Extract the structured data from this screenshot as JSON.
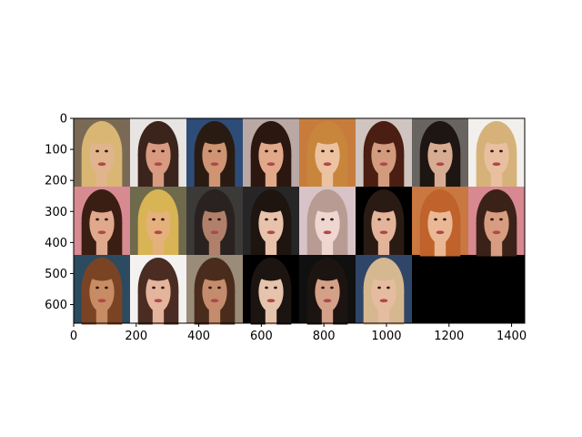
{
  "figure": {
    "background": "#ffffff",
    "image": {
      "description_rows": 3,
      "description_cols": 8,
      "fill_color": "#000000",
      "tiles": [
        {
          "bg": "#7a6a55",
          "skin": "#e0b48c",
          "hair": "#d9b673"
        },
        {
          "bg": "#e8e4e2",
          "skin": "#d89a80",
          "hair": "#3a241c"
        },
        {
          "bg": "#2e4c78",
          "skin": "#cf9472",
          "hair": "#2a1b12"
        },
        {
          "bg": "#b9a8a4",
          "skin": "#e2a88a",
          "hair": "#2c1710"
        },
        {
          "bg": "#c87c3c",
          "skin": "#ecc2a0",
          "hair": "#c8863c"
        },
        {
          "bg": "#cfc4bf",
          "skin": "#d39b7e",
          "hair": "#4a1e12"
        },
        {
          "bg": "#6a6460",
          "skin": "#d8ac92",
          "hair": "#1e1612"
        },
        {
          "bg": "#f2f0ec",
          "skin": "#e8c0a0",
          "hair": "#d6b27a"
        },
        {
          "bg": "#d88a92",
          "skin": "#e0a88c",
          "hair": "#3a1e14"
        },
        {
          "bg": "#6f6a4c",
          "skin": "#e4b07c",
          "hair": "#d8b454"
        },
        {
          "bg": "#3c3a38",
          "skin": "#b0806a",
          "hair": "#2a2220"
        },
        {
          "bg": "#262626",
          "skin": "#e8c2aa",
          "hair": "#1e1410"
        },
        {
          "bg": "#d8c4c8",
          "skin": "#f0d6d0",
          "hair": "#b89c94"
        },
        {
          "bg": "#000000",
          "skin": "#e4b49a",
          "hair": "#2a1a14"
        },
        {
          "bg": "#c87840",
          "skin": "#eab894",
          "hair": "#c0622c"
        },
        {
          "bg": "#d88890",
          "skin": "#d89c80",
          "hair": "#3a2218"
        },
        {
          "bg": "#2c4a60",
          "skin": "#c88c64",
          "hair": "#7a4424"
        },
        {
          "bg": "#f4f2f0",
          "skin": "#e4b49c",
          "hair": "#4a2c22"
        },
        {
          "bg": "#9a8c78",
          "skin": "#c48c6c",
          "hair": "#4a2c1c"
        },
        {
          "bg": "#000000",
          "skin": "#e6c4ac",
          "hair": "#1c1410"
        },
        {
          "bg": "#101010",
          "skin": "#d4a088",
          "hair": "#1c1410"
        },
        {
          "bg": "#304668",
          "skin": "#e6bca0",
          "hair": "#d6b890"
        }
      ]
    },
    "x_axis": {
      "ticks": [
        "0",
        "200",
        "400",
        "600",
        "800",
        "1000",
        "1200",
        "1400"
      ],
      "tick_values": [
        0,
        200,
        400,
        600,
        800,
        1000,
        1200,
        1400
      ],
      "range": [
        0,
        1442
      ]
    },
    "y_axis": {
      "ticks": [
        "0",
        "100",
        "200",
        "300",
        "400",
        "500",
        "600"
      ],
      "tick_values": [
        0,
        100,
        200,
        300,
        400,
        500,
        600
      ],
      "range": [
        0,
        660
      ]
    }
  }
}
